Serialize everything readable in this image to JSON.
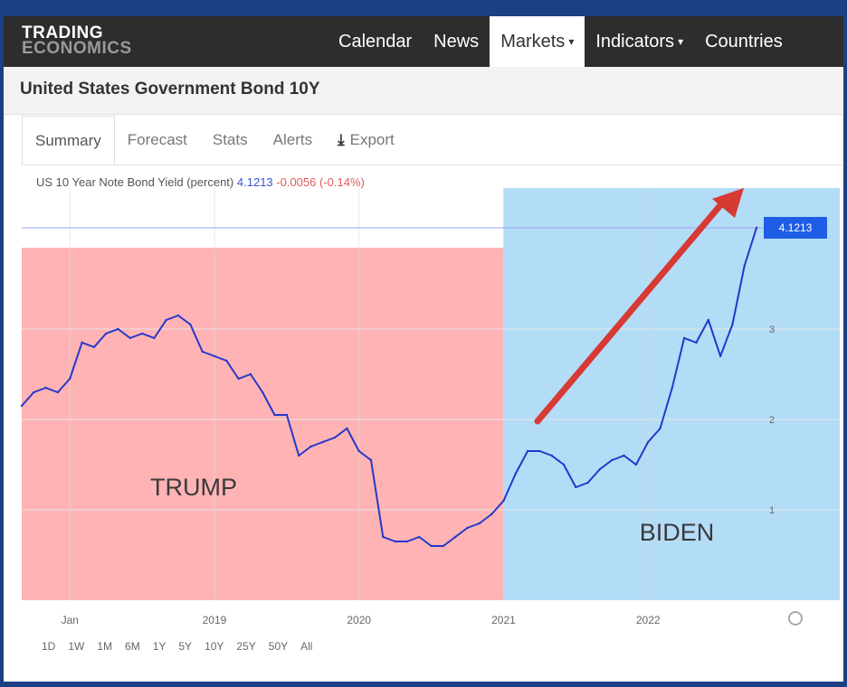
{
  "header": {
    "logo_line1": "TRADING",
    "logo_line2": "ECONOMICS",
    "nav": [
      {
        "label": "Calendar",
        "caret": false
      },
      {
        "label": "News",
        "caret": false
      },
      {
        "label": "Markets",
        "caret": true
      },
      {
        "label": "Indicators",
        "caret": true
      },
      {
        "label": "Countries",
        "caret": false
      }
    ],
    "active_nav": "Markets"
  },
  "page_title": "United States Government Bond 10Y",
  "tabs": [
    "Summary",
    "Forecast",
    "Stats",
    "Alerts",
    "Export"
  ],
  "active_tab": "Summary",
  "quote": {
    "name": "US 10 Year Note Bond Yield (percent)",
    "value": "4.1213",
    "change": "-0.0056 (-0.14%)"
  },
  "range_buttons": [
    "1D",
    "1W",
    "1M",
    "6M",
    "1Y",
    "5Y",
    "10Y",
    "25Y",
    "50Y",
    "All"
  ],
  "colors": {
    "trump_shade": "#ffb3b5",
    "biden_shade": "#b3dcf7",
    "line": "#2438c9",
    "arrow": "#d63a33",
    "price_tag": "#1e5ee6"
  },
  "chart_data": {
    "type": "line",
    "title": "",
    "xlabel": "",
    "ylabel": "",
    "x_ticks": [
      "Jan",
      "2019",
      "2020",
      "2021",
      "2022"
    ],
    "y_ticks": [
      1,
      2,
      3
    ],
    "ylim": [
      0,
      4.5
    ],
    "xlim": [
      "2017-09",
      "2022-10"
    ],
    "last_value_label": "4.1213",
    "annotations": [
      "TRUMP",
      "BIDEN"
    ],
    "shaded_regions": [
      {
        "label": "TRUMP",
        "from": "2017-09",
        "to": "2021-01"
      },
      {
        "label": "BIDEN",
        "from": "2021-01",
        "to": "2022-10"
      }
    ],
    "series": [
      {
        "x": [
          "2017-09",
          "2017-10",
          "2017-11",
          "2017-12",
          "2018-01",
          "2018-02",
          "2018-03",
          "2018-04",
          "2018-05",
          "2018-06",
          "2018-07",
          "2018-08",
          "2018-09",
          "2018-10",
          "2018-11",
          "2018-12",
          "2019-01",
          "2019-02",
          "2019-03",
          "2019-04",
          "2019-05",
          "2019-06",
          "2019-07",
          "2019-08",
          "2019-09",
          "2019-10",
          "2019-11",
          "2019-12",
          "2020-01",
          "2020-02",
          "2020-03",
          "2020-04",
          "2020-05",
          "2020-06",
          "2020-07",
          "2020-08",
          "2020-09",
          "2020-10",
          "2020-11",
          "2020-12",
          "2021-01",
          "2021-02",
          "2021-03",
          "2021-04",
          "2021-05",
          "2021-06",
          "2021-07",
          "2021-08",
          "2021-09",
          "2021-10",
          "2021-11",
          "2021-12",
          "2022-01",
          "2022-02",
          "2022-03",
          "2022-04",
          "2022-05",
          "2022-06",
          "2022-07",
          "2022-08",
          "2022-09",
          "2022-10"
        ],
        "values": [
          2.15,
          2.3,
          2.35,
          2.3,
          2.45,
          2.85,
          2.8,
          2.95,
          3.0,
          2.9,
          2.95,
          2.9,
          3.1,
          3.15,
          3.05,
          2.75,
          2.7,
          2.65,
          2.45,
          2.5,
          2.3,
          2.05,
          2.05,
          1.6,
          1.7,
          1.75,
          1.8,
          1.9,
          1.65,
          1.55,
          0.7,
          0.65,
          0.65,
          0.7,
          0.6,
          0.6,
          0.7,
          0.8,
          0.85,
          0.95,
          1.1,
          1.4,
          1.65,
          1.65,
          1.6,
          1.5,
          1.25,
          1.3,
          1.45,
          1.55,
          1.6,
          1.5,
          1.75,
          1.9,
          2.35,
          2.9,
          2.85,
          3.1,
          2.7,
          3.05,
          3.7,
          4.12
        ]
      }
    ]
  }
}
